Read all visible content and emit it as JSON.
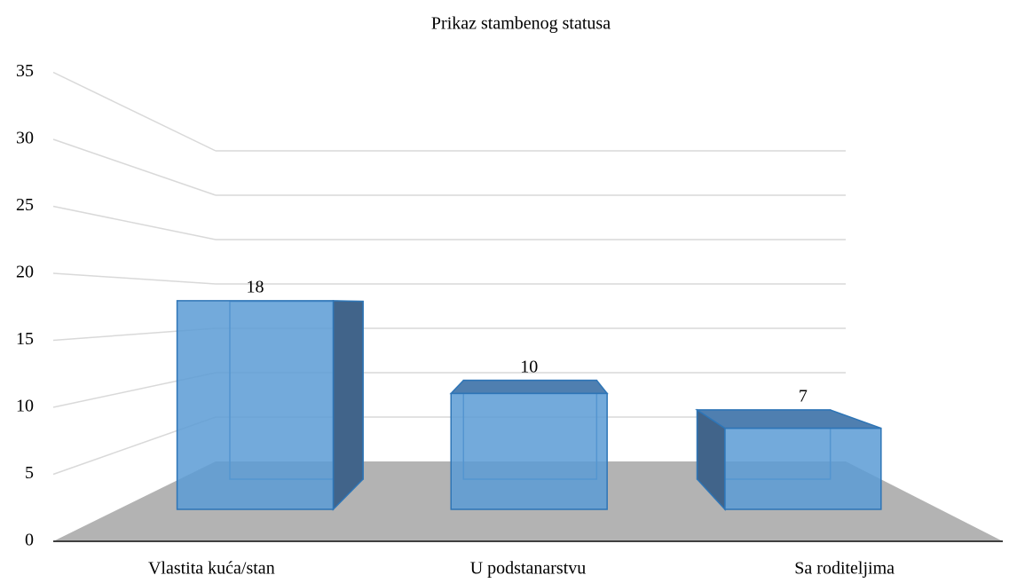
{
  "chart_data": {
    "type": "bar3d",
    "title": "Prikaz stambenog statusa",
    "categories": [
      "Vlastita kuća/stan",
      "U podstanarstvu",
      "Sa roditeljima"
    ],
    "values": [
      18,
      10,
      7
    ],
    "color": "#5b9bd5",
    "ylim": [
      0,
      35
    ],
    "yticks": [
      0,
      5,
      10,
      15,
      20,
      25,
      30,
      35
    ],
    "grid": true
  }
}
